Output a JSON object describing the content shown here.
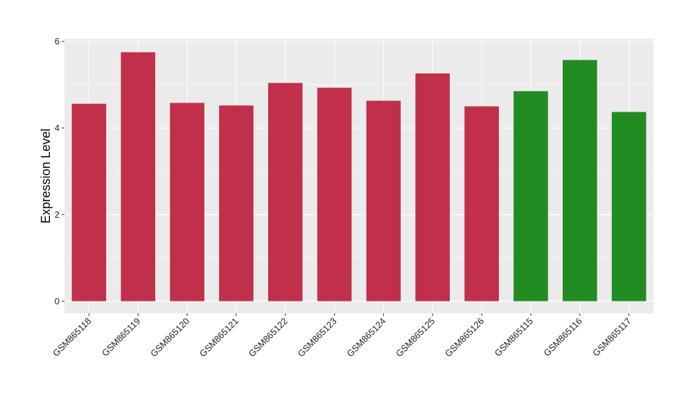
{
  "chart_data": {
    "type": "bar",
    "title": "",
    "xlabel": "",
    "ylabel": "Expression Level",
    "ylim": [
      -0.28,
      6.06
    ],
    "yticks": [
      0,
      2,
      4,
      6
    ],
    "grid": true,
    "legend": "none",
    "categories": [
      "GSM865118",
      "GSM865119",
      "GSM865120",
      "GSM865121",
      "GSM865122",
      "GSM865123",
      "GSM865124",
      "GSM865125",
      "GSM865126",
      "GSM865115",
      "GSM865116",
      "GSM865117"
    ],
    "values": [
      4.56,
      5.75,
      4.58,
      4.52,
      5.04,
      4.93,
      4.63,
      5.26,
      4.5,
      4.85,
      5.57,
      4.37
    ],
    "bar_colors": [
      "#c0304a",
      "#c0304a",
      "#c0304a",
      "#c0304a",
      "#c0304a",
      "#c0304a",
      "#c0304a",
      "#c0304a",
      "#c0304a",
      "#228b22",
      "#228b22",
      "#228b22"
    ],
    "panel_background": "#ebebeb",
    "grid_color": "#ffffff"
  }
}
